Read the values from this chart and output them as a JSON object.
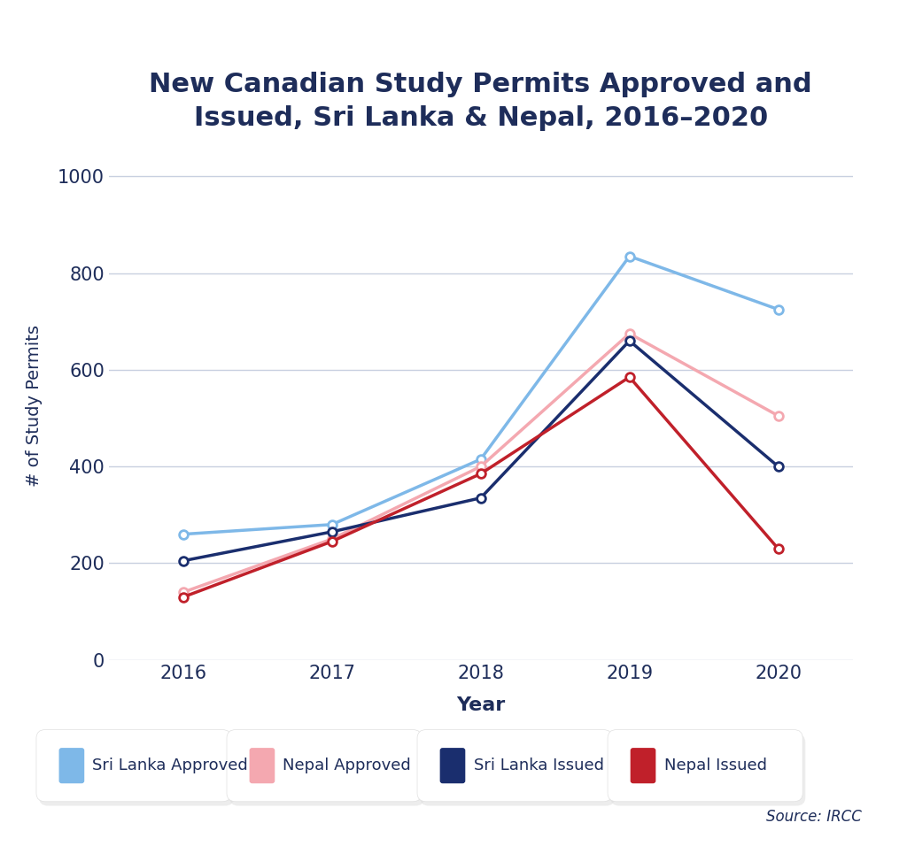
{
  "title": "New Canadian Study Permits Approved and\nIssued, Sri Lanka & Nepal, 2016–2020",
  "xlabel": "Year",
  "ylabel": "# of Study Permits",
  "years": [
    2016,
    2017,
    2018,
    2019,
    2020
  ],
  "series": {
    "Sri Lanka Approved": [
      260,
      280,
      415,
      835,
      725
    ],
    "Nepal Approved": [
      140,
      250,
      400,
      675,
      505
    ],
    "Sri Lanka Issued": [
      205,
      265,
      335,
      660,
      400
    ],
    "Nepal Issued": [
      130,
      245,
      385,
      585,
      230
    ]
  },
  "colors": {
    "Sri Lanka Approved": "#7eb8e8",
    "Nepal Approved": "#f4a8b0",
    "Sri Lanka Issued": "#1a2e6e",
    "Nepal Issued": "#c0202a"
  },
  "ylim": [
    0,
    1050
  ],
  "yticks": [
    0,
    200,
    400,
    600,
    800,
    1000
  ],
  "background_color": "#ffffff",
  "grid_color": "#c8d0e0",
  "text_color": "#1e2d5a",
  "source_text": "Source: IRCC",
  "legend_order": [
    "Sri Lanka Approved",
    "Nepal Approved",
    "Sri Lanka Issued",
    "Nepal Issued"
  ]
}
